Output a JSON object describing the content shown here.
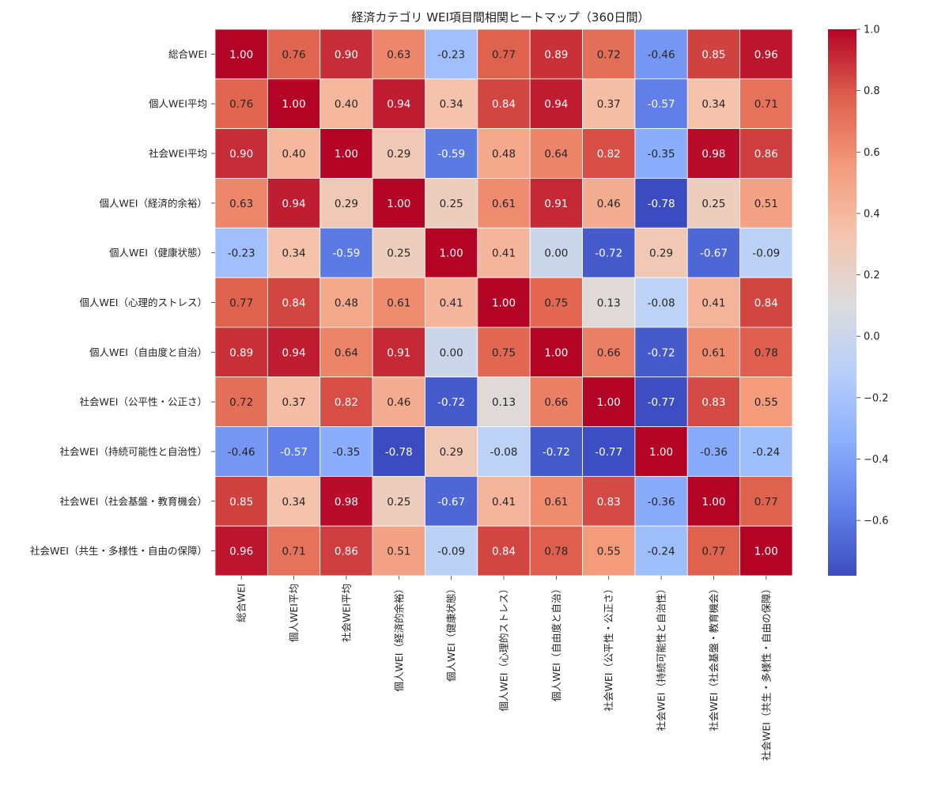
{
  "chart_data": {
    "type": "heatmap",
    "title": "経済カテゴリ WEI項目間相関ヒートマップ（360日間）",
    "xlabel": "",
    "ylabel": "",
    "labels": [
      "総合WEI",
      "個人WEI平均",
      "社会WEI平均",
      "個人WEI（経済的余裕）",
      "個人WEI（健康状態）",
      "個人WEI（心理的ストレス）",
      "個人WEI（自由度と自治）",
      "社会WEI（公平性・公正さ）",
      "社会WEI（持続可能性と自治性）",
      "社会WEI（社会基盤・教育機会）",
      "社会WEI（共生・多様性・自由の保障）"
    ],
    "matrix": [
      [
        1.0,
        0.76,
        0.9,
        0.63,
        -0.23,
        0.77,
        0.89,
        0.72,
        -0.46,
        0.85,
        0.96
      ],
      [
        0.76,
        1.0,
        0.4,
        0.94,
        0.34,
        0.84,
        0.94,
        0.37,
        -0.57,
        0.34,
        0.71
      ],
      [
        0.9,
        0.4,
        1.0,
        0.29,
        -0.59,
        0.48,
        0.64,
        0.82,
        -0.35,
        0.98,
        0.86
      ],
      [
        0.63,
        0.94,
        0.29,
        1.0,
        0.25,
        0.61,
        0.91,
        0.46,
        -0.78,
        0.25,
        0.51
      ],
      [
        -0.23,
        0.34,
        -0.59,
        0.25,
        1.0,
        0.41,
        0.0,
        -0.72,
        0.29,
        -0.67,
        -0.09
      ],
      [
        0.77,
        0.84,
        0.48,
        0.61,
        0.41,
        1.0,
        0.75,
        0.13,
        -0.08,
        0.41,
        0.84
      ],
      [
        0.89,
        0.94,
        0.64,
        0.91,
        0.0,
        0.75,
        1.0,
        0.66,
        -0.72,
        0.61,
        0.78
      ],
      [
        0.72,
        0.37,
        0.82,
        0.46,
        -0.72,
        0.13,
        0.66,
        1.0,
        -0.77,
        0.83,
        0.55
      ],
      [
        -0.46,
        -0.57,
        -0.35,
        -0.78,
        0.29,
        -0.08,
        -0.72,
        -0.77,
        1.0,
        -0.36,
        -0.24
      ],
      [
        0.85,
        0.34,
        0.98,
        0.25,
        -0.67,
        0.41,
        0.61,
        0.83,
        -0.36,
        1.0,
        0.77
      ],
      [
        0.96,
        0.71,
        0.86,
        0.51,
        -0.09,
        0.84,
        0.78,
        0.55,
        -0.24,
        0.77,
        1.0
      ]
    ],
    "value_format": "0.00",
    "colormap": "coolwarm",
    "vmin": -0.78,
    "vmax": 1.0,
    "colorbar_ticks": [
      1.0,
      0.8,
      0.6,
      0.4,
      0.2,
      0.0,
      -0.2,
      -0.4,
      -0.6
    ],
    "colorbar_tick_labels": [
      "1.0",
      "0.8",
      "0.6",
      "0.4",
      "0.2",
      "0.0",
      "−0.2",
      "−0.4",
      "−0.6"
    ],
    "grid_lines_color": "#ffffff"
  }
}
